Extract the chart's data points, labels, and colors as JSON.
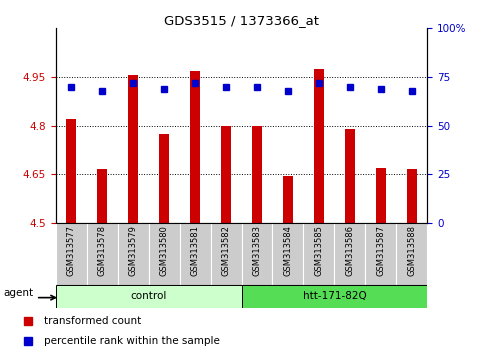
{
  "title": "GDS3515 / 1373366_at",
  "samples": [
    "GSM313577",
    "GSM313578",
    "GSM313579",
    "GSM313580",
    "GSM313581",
    "GSM313582",
    "GSM313583",
    "GSM313584",
    "GSM313585",
    "GSM313586",
    "GSM313587",
    "GSM313588"
  ],
  "bar_values": [
    4.82,
    4.665,
    4.955,
    4.775,
    4.97,
    4.8,
    4.8,
    4.645,
    4.975,
    4.79,
    4.67,
    4.665
  ],
  "percentile_values": [
    70,
    68,
    72,
    69,
    72,
    70,
    70,
    68,
    72,
    70,
    69,
    68
  ],
  "ylim_left": [
    4.5,
    5.1
  ],
  "ylim_right": [
    0,
    100
  ],
  "yticks_left": [
    4.5,
    4.65,
    4.8,
    4.95
  ],
  "yticks_right": [
    0,
    25,
    50,
    75,
    100
  ],
  "bar_color": "#cc0000",
  "dot_color": "#0000cc",
  "bar_bottom": 4.5,
  "groups": [
    {
      "label": "control",
      "start": 0,
      "end": 6,
      "color": "#ccffcc"
    },
    {
      "label": "htt-171-82Q",
      "start": 6,
      "end": 12,
      "color": "#55dd55"
    }
  ],
  "agent_label": "agent",
  "legend_bar_label": "transformed count",
  "legend_dot_label": "percentile rank within the sample",
  "bar_color_hex": "#cc0000",
  "dot_color_hex": "#0000cc",
  "left_tick_color": "#cc0000",
  "right_tick_color": "#0000cc",
  "grid_linestyle": ":",
  "grid_color": "#000000",
  "tick_area_color": "#cccccc"
}
